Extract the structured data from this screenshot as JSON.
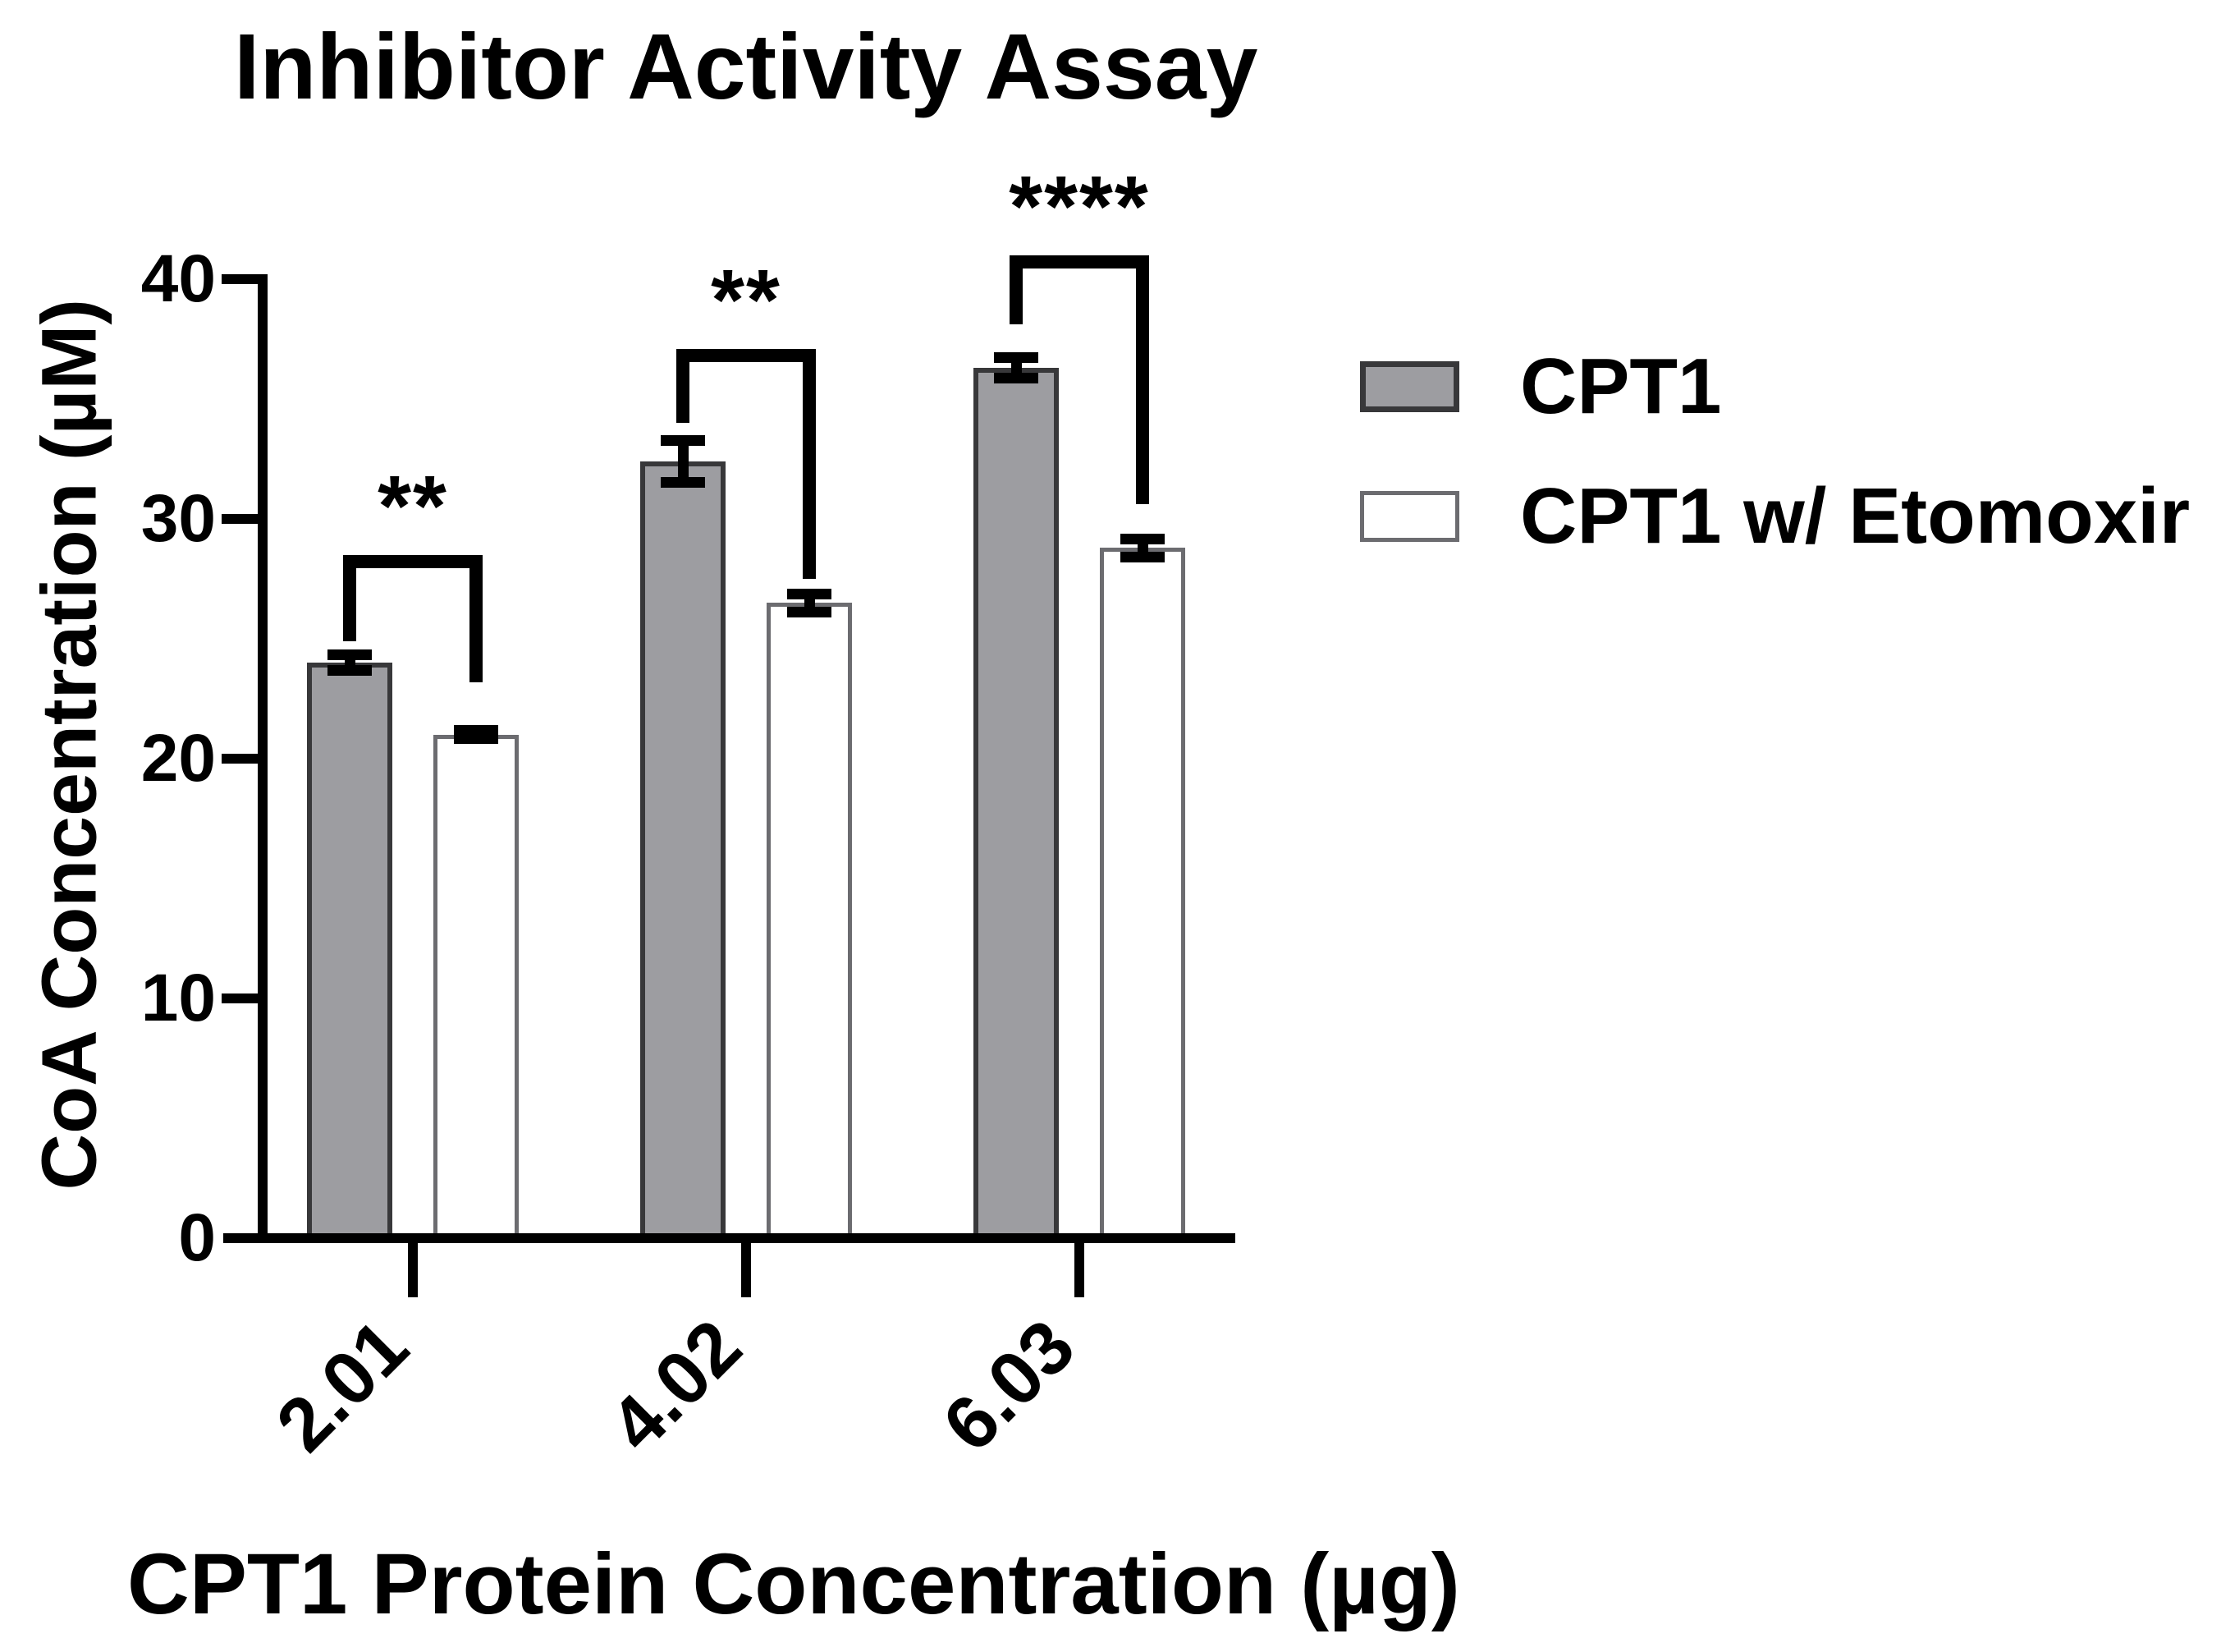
{
  "title": "Inhibitor Activity Assay",
  "colors": {
    "axis": "#000000",
    "cpt1_fill": "#9d9da1",
    "cpt1_border": "#38383a",
    "etomoxir_fill": "#ffffff",
    "etomoxir_border": "#6c6c70"
  },
  "chart_data": {
    "type": "bar",
    "title": "Inhibitor Activity Assay",
    "xlabel": "CPT1 Protein Concentration (µg)",
    "ylabel": "CoA Concentration (µM)",
    "categories": [
      "2.01",
      "4.02",
      "6.03"
    ],
    "ylim": [
      0,
      40
    ],
    "y_ticks": [
      0,
      10,
      20,
      30,
      40
    ],
    "grid": false,
    "legend_position": "right",
    "series": [
      {
        "name": "CPT1",
        "fill": "#9d9da1",
        "border": "#38383a",
        "values": [
          24.0,
          32.4,
          36.3
        ],
        "errors": [
          0.55,
          1.1,
          0.65
        ]
      },
      {
        "name": "CPT1 w/ Etomoxir",
        "fill": "#ffffff",
        "border": "#6c6c70",
        "values": [
          21.0,
          26.5,
          28.8
        ],
        "errors": [
          0.4,
          0.6,
          0.6
        ]
      }
    ],
    "significance": [
      {
        "category": "2.01",
        "label": "**",
        "bar_y": 28.5,
        "left_leg_to": 24.9,
        "right_leg_to": 23.2
      },
      {
        "category": "4.02",
        "label": "**",
        "bar_y": 37.1,
        "left_leg_to": 34.0,
        "right_leg_to": 27.5
      },
      {
        "category": "6.03",
        "label": "****",
        "bar_y": 41.0,
        "left_leg_to": 38.1,
        "right_leg_to": 30.6
      }
    ]
  }
}
